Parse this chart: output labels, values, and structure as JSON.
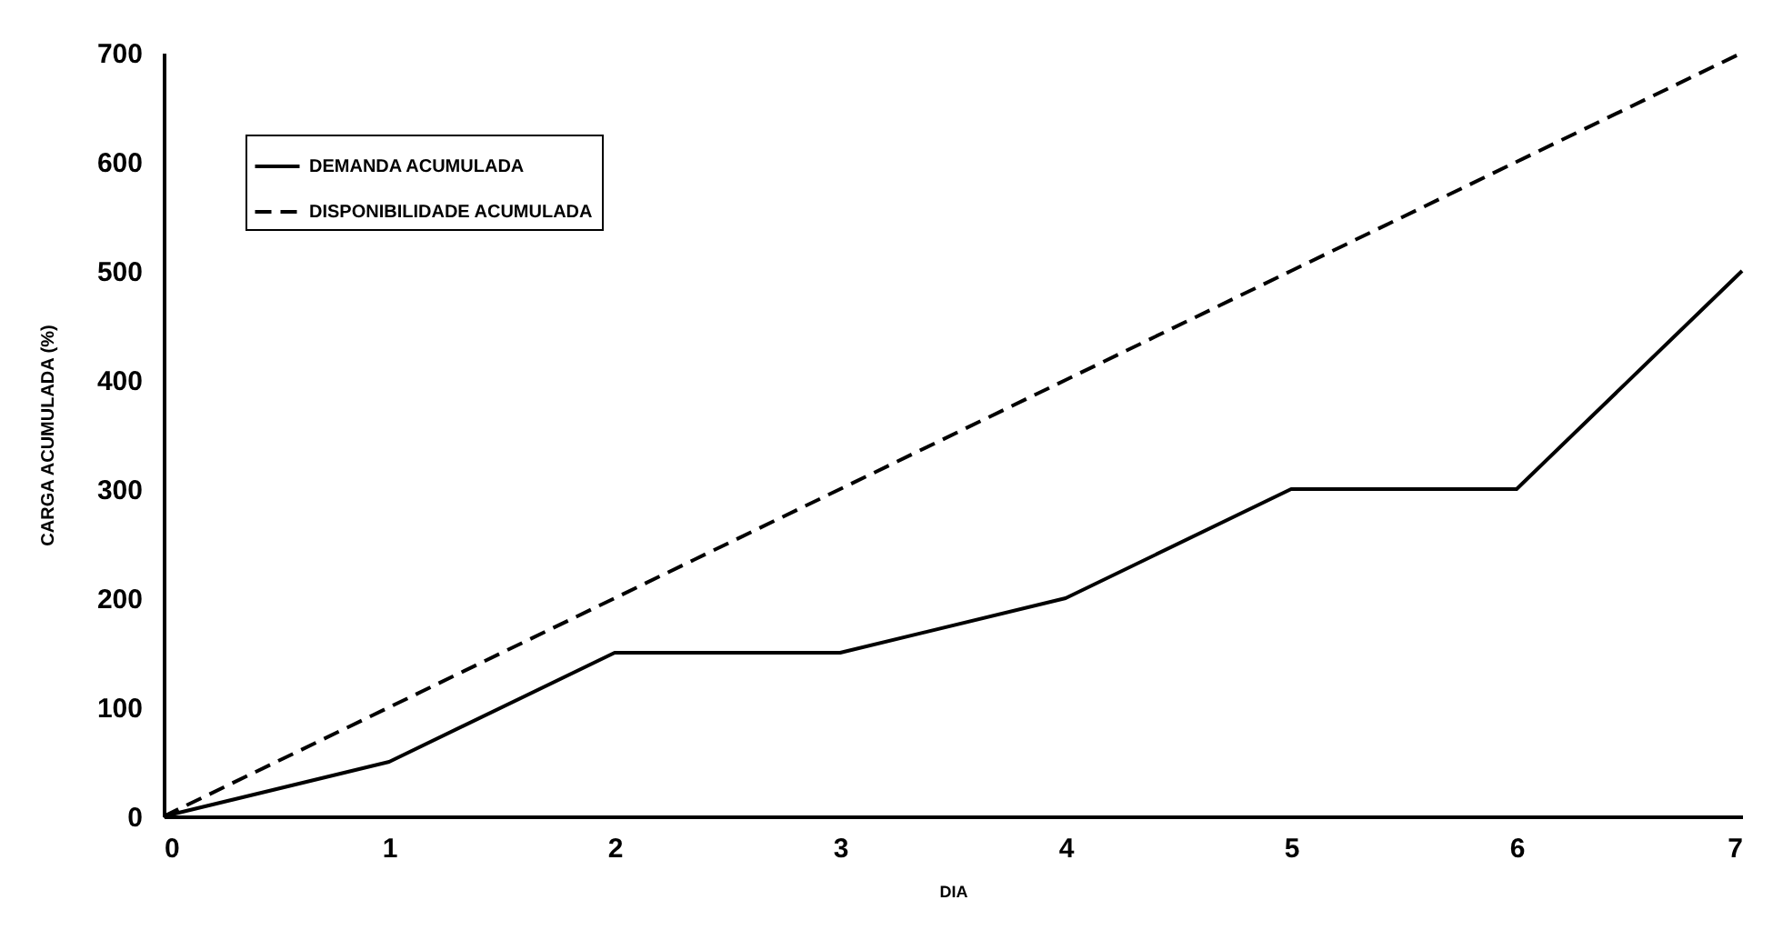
{
  "chart_data": {
    "type": "line",
    "xlabel": "DIA",
    "ylabel": "CARGA ACUMULADA (%)",
    "x": [
      0,
      1,
      2,
      3,
      4,
      5,
      6,
      7
    ],
    "series": [
      {
        "name": "DEMANDA ACUMULADA",
        "color": "#000000",
        "line_style": "solid",
        "values": [
          0,
          50,
          150,
          150,
          200,
          300,
          300,
          500
        ]
      },
      {
        "name": "DISPONIBILIDADE ACUMULADA",
        "color": "#000000",
        "line_style": "dashed",
        "values": [
          0,
          100,
          200,
          300,
          400,
          500,
          600,
          700
        ]
      }
    ],
    "xlim": [
      0,
      7
    ],
    "xticks": [
      0,
      1,
      2,
      3,
      4,
      5,
      6,
      7
    ],
    "ylim": [
      0,
      700
    ],
    "yticks": [
      0,
      100,
      200,
      300,
      400,
      500,
      600,
      700
    ],
    "grid": false,
    "legend": "top left",
    "marker": "none"
  }
}
